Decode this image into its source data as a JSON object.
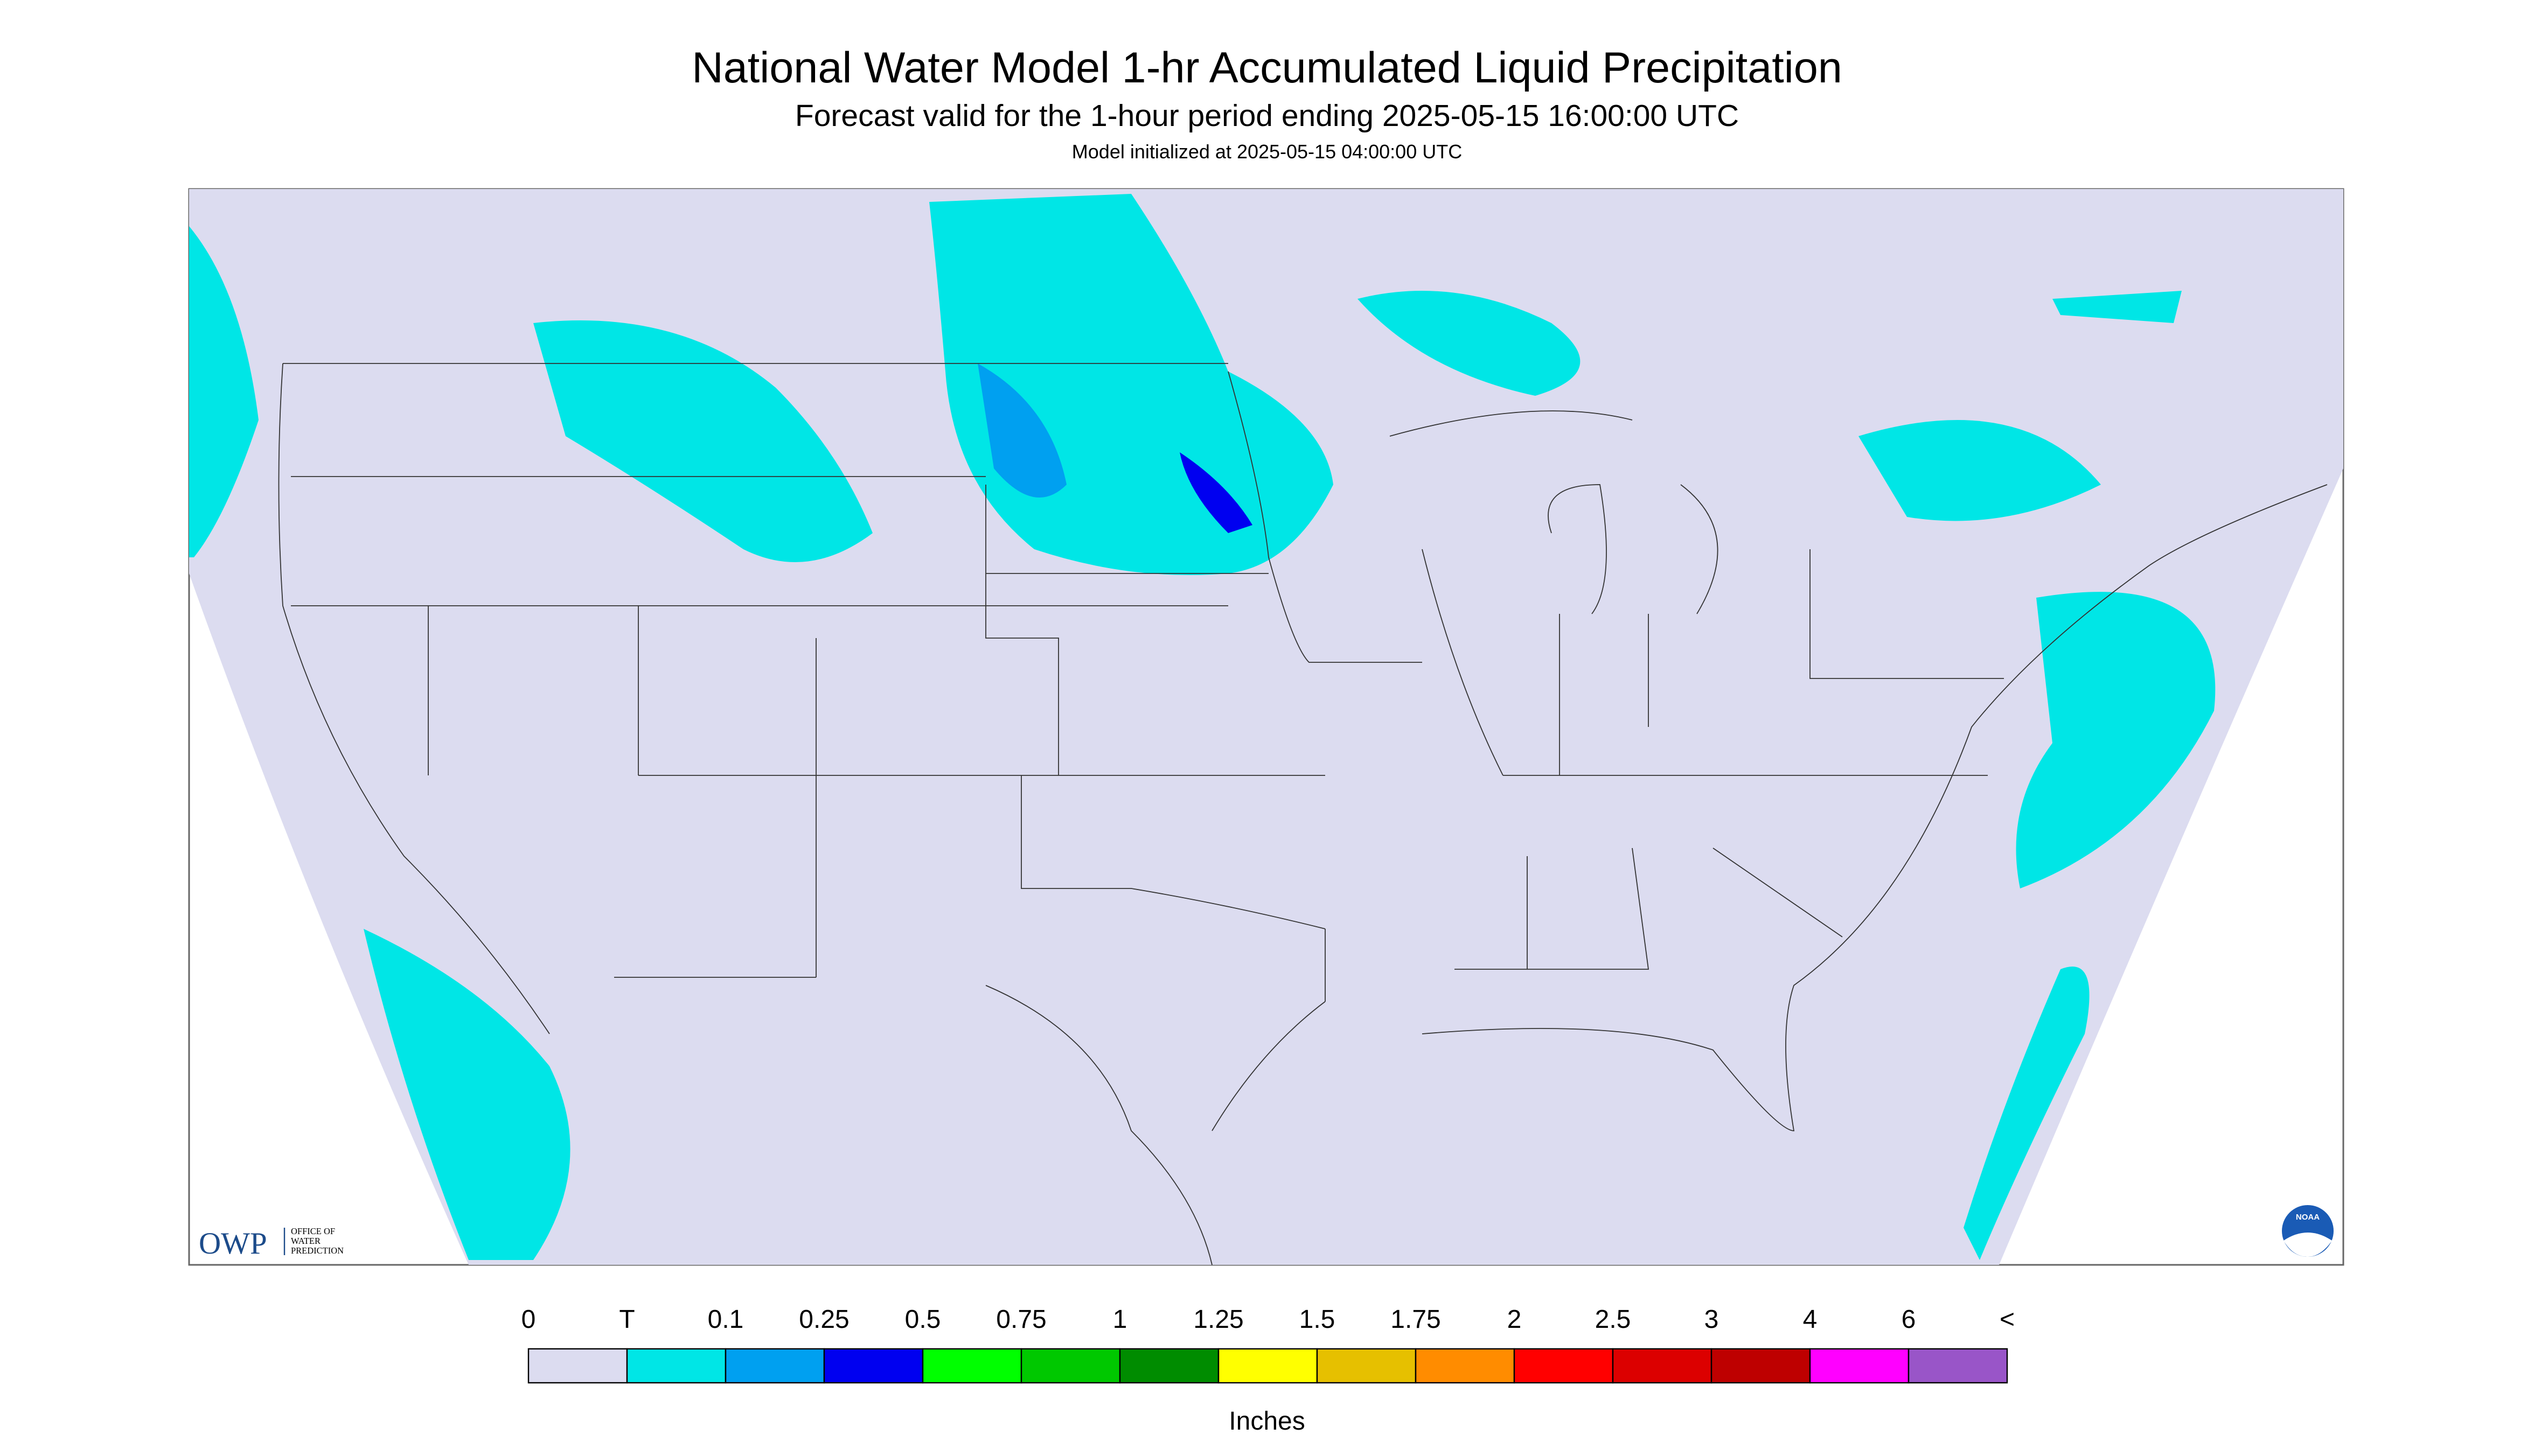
{
  "header": {
    "title": "National Water Model 1-hr Accumulated Liquid Precipitation",
    "subtitle": "Forecast valid for the 1-hour period ending 2025-05-15 16:00:00 UTC",
    "note": "Model initialized at 2025-05-15 04:00:00 UTC"
  },
  "logos": {
    "owp": "OWP",
    "owp_text": [
      "OFFICE OF",
      "WATER",
      "PREDICTION"
    ],
    "noaa": "NOAA"
  },
  "legend": {
    "labels": [
      "0",
      "T",
      "0.1",
      "0.25",
      "0.5",
      "0.75",
      "1",
      "1.25",
      "1.5",
      "1.75",
      "2",
      "2.5",
      "3",
      "4",
      "6",
      "<"
    ],
    "colors": [
      "#dcdcf0",
      "#00e6e6",
      "#00a0f0",
      "#0000f0",
      "#00ff00",
      "#00c800",
      "#008c00",
      "#ffff00",
      "#e6c000",
      "#ff8c00",
      "#ff0000",
      "#dc0000",
      "#be0000",
      "#ff00ff",
      "#9955c8"
    ],
    "unit": "Inches"
  }
}
